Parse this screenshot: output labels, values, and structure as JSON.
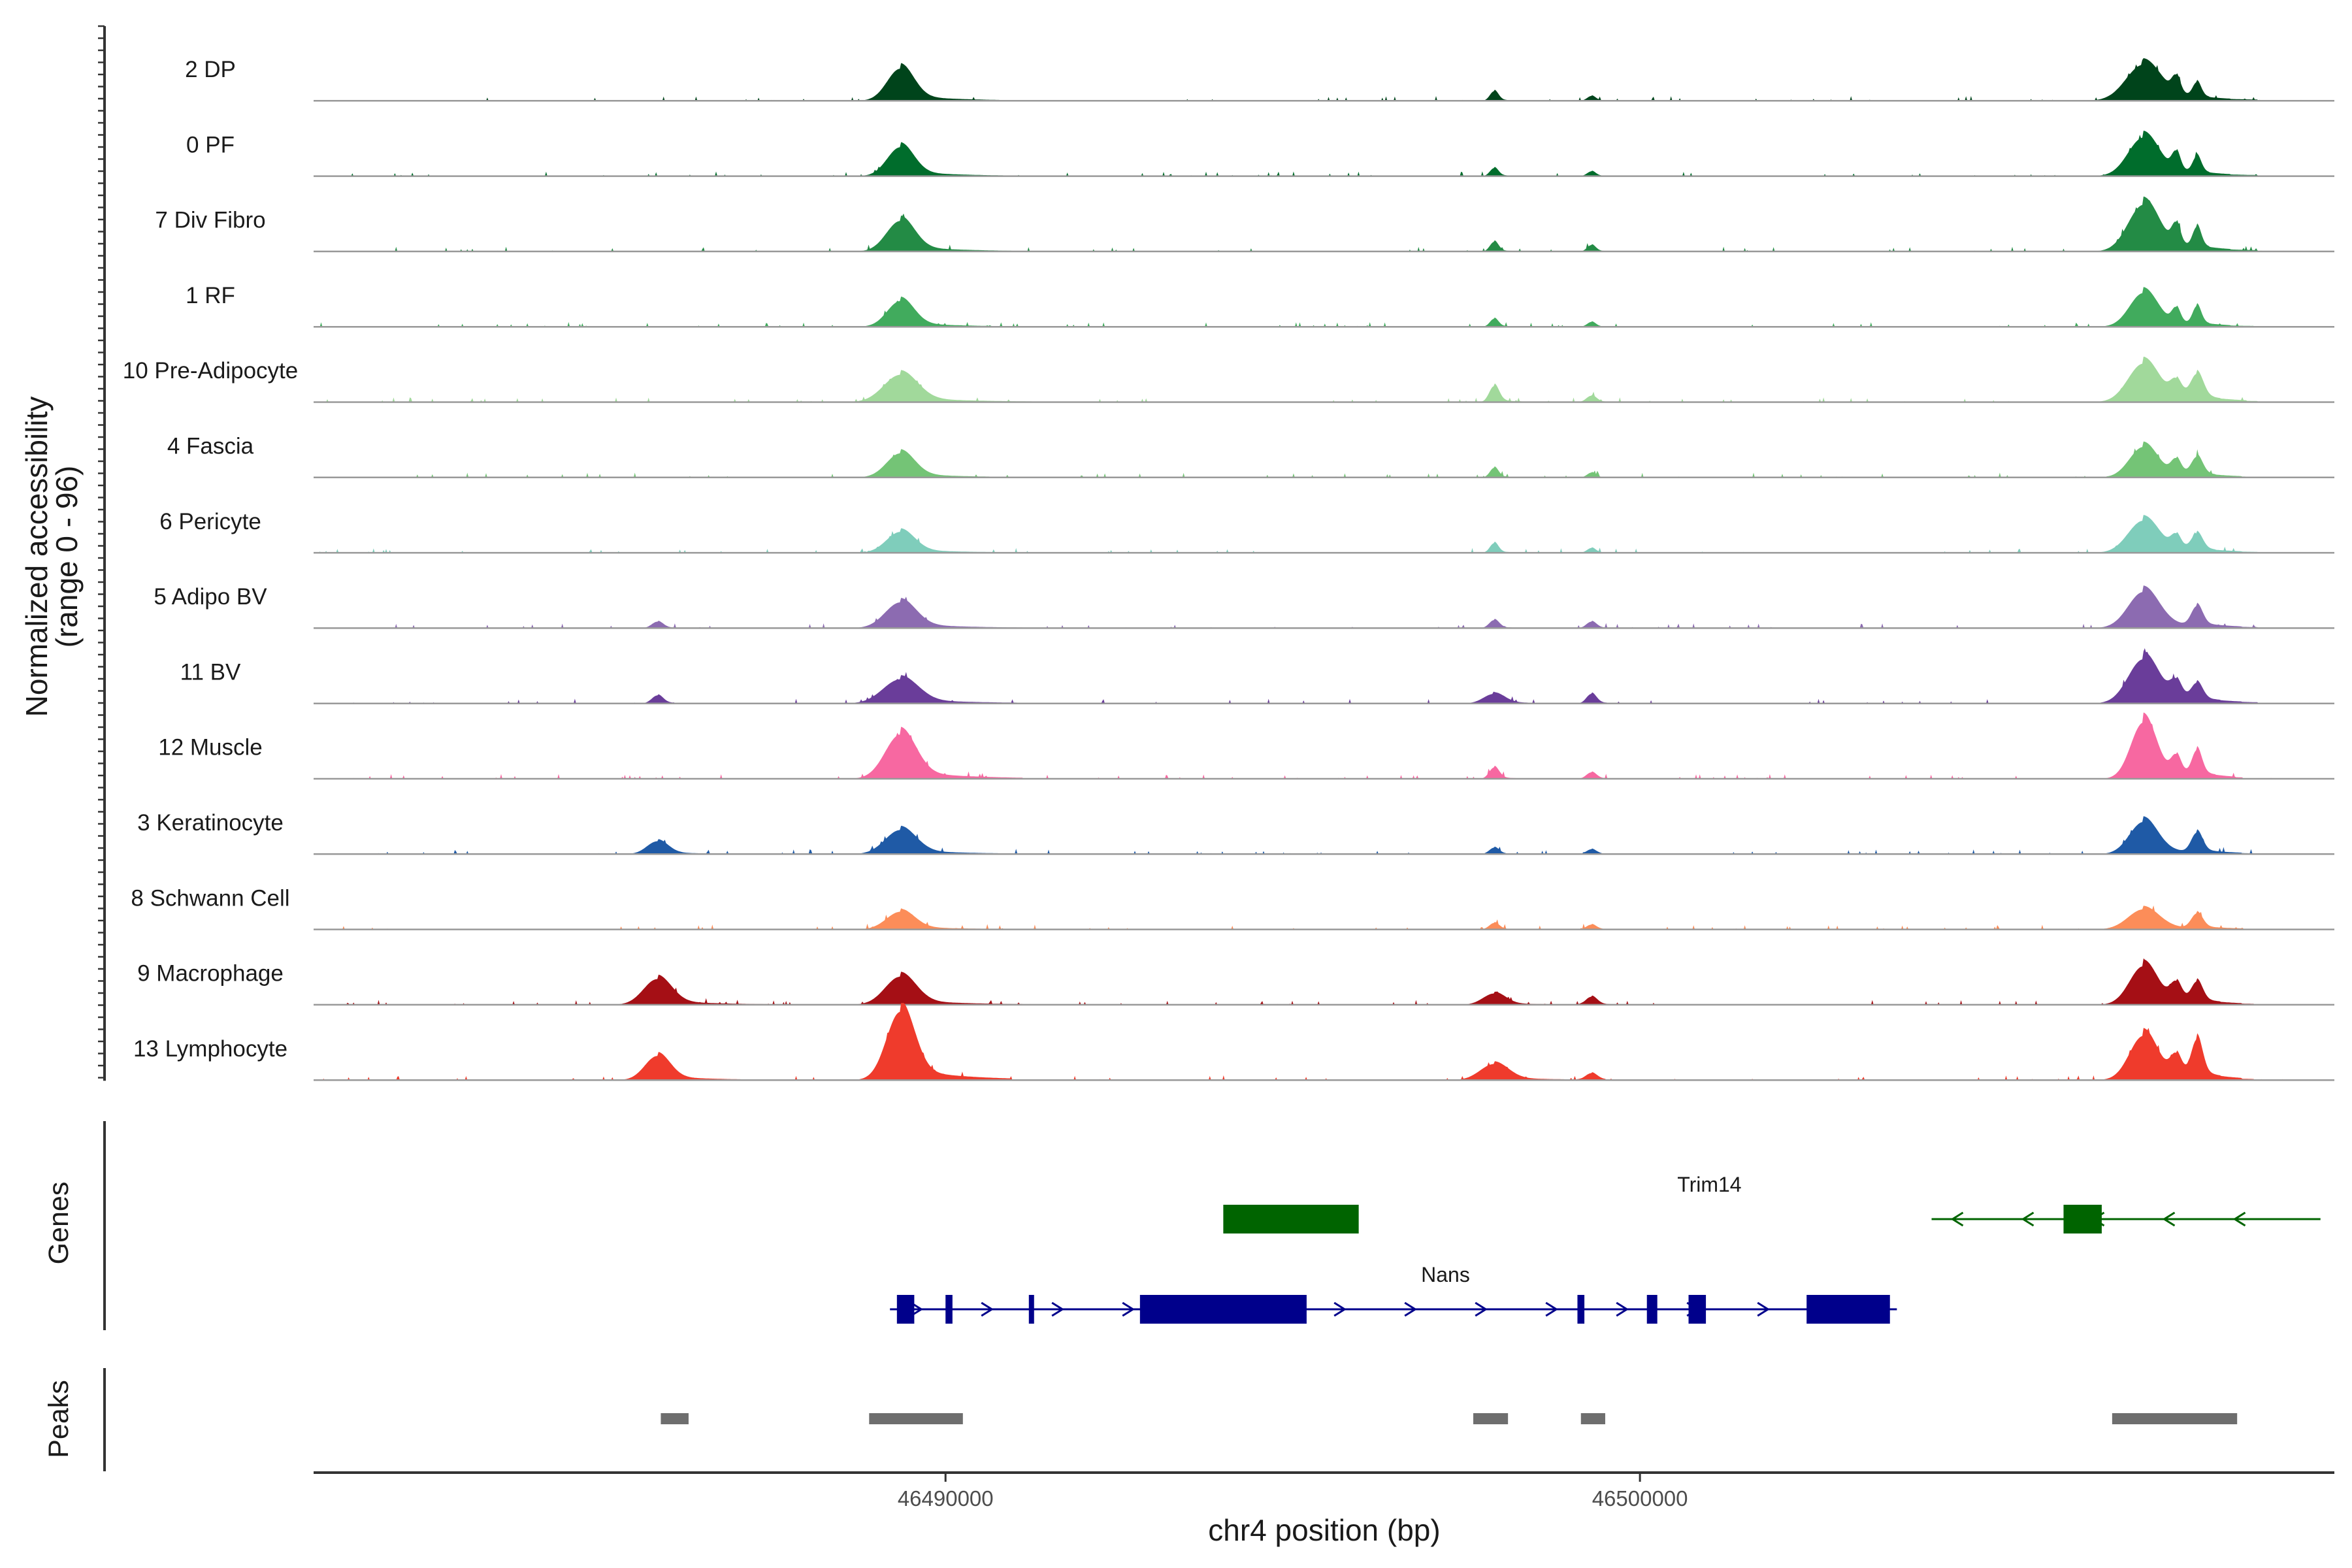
{
  "chart_data": {
    "type": "area",
    "title": "",
    "chromosome": "chr4",
    "xlabel": "chr4 position (bp)",
    "ylabel_line1": "Normalized accessibility",
    "ylabel_line2": "(range 0 - 96)",
    "xlim": [
      46480900,
      46510000
    ],
    "ylim": [
      0,
      96
    ],
    "x_ticks": [
      46490000,
      46500000
    ],
    "x_tick_labels": [
      "46490000",
      "46500000"
    ],
    "tracks": [
      {
        "name": "2 DP",
        "color": "#00441b",
        "peaks": [
          [
            46489350,
            40,
            190
          ],
          [
            46497900,
            12,
            60
          ],
          [
            46499300,
            6,
            60
          ],
          [
            46507250,
            45,
            250
          ],
          [
            46507720,
            20,
            60
          ],
          [
            46508020,
            18,
            60
          ]
        ]
      },
      {
        "name": "0 PF",
        "color": "#006d2c",
        "peaks": [
          [
            46489350,
            36,
            190
          ],
          [
            46497900,
            10,
            60
          ],
          [
            46499300,
            6,
            60
          ],
          [
            46507250,
            48,
            220
          ],
          [
            46507720,
            22,
            60
          ],
          [
            46508020,
            20,
            60
          ]
        ]
      },
      {
        "name": "7 Div Fibro",
        "color": "#238b45",
        "peaks": [
          [
            46489350,
            38,
            200
          ],
          [
            46497900,
            12,
            60
          ],
          [
            46499300,
            8,
            60
          ],
          [
            46507250,
            58,
            220
          ],
          [
            46507720,
            25,
            60
          ],
          [
            46508020,
            25,
            60
          ]
        ]
      },
      {
        "name": "1 RF",
        "color": "#41ab5d",
        "peaks": [
          [
            46489350,
            32,
            190
          ],
          [
            46497900,
            10,
            60
          ],
          [
            46499300,
            6,
            60
          ],
          [
            46507250,
            42,
            200
          ],
          [
            46507720,
            18,
            60
          ],
          [
            46508020,
            22,
            60
          ]
        ]
      },
      {
        "name": "10 Pre-Adipocyte",
        "color": "#a1d99b",
        "peaks": [
          [
            46489350,
            34,
            240
          ],
          [
            46497900,
            20,
            70
          ],
          [
            46499300,
            8,
            70
          ],
          [
            46507250,
            48,
            220
          ],
          [
            46507720,
            20,
            80
          ],
          [
            46508020,
            30,
            90
          ]
        ]
      },
      {
        "name": "4 Fascia",
        "color": "#74c476",
        "peaks": [
          [
            46489350,
            30,
            200
          ],
          [
            46497900,
            12,
            60
          ],
          [
            46499300,
            6,
            60
          ],
          [
            46507250,
            38,
            200
          ],
          [
            46507720,
            18,
            70
          ],
          [
            46508020,
            22,
            80
          ]
        ]
      },
      {
        "name": "6 Pericyte",
        "color": "#7fcdbb",
        "peaks": [
          [
            46489350,
            26,
            200
          ],
          [
            46497900,
            12,
            60
          ],
          [
            46499300,
            6,
            60
          ],
          [
            46507250,
            40,
            220
          ],
          [
            46507720,
            16,
            70
          ],
          [
            46508020,
            20,
            80
          ]
        ]
      },
      {
        "name": "5 Adipo BV",
        "color": "#8c6bb1",
        "peaks": [
          [
            46485850,
            8,
            80
          ],
          [
            46489350,
            32,
            220
          ],
          [
            46497900,
            10,
            70
          ],
          [
            46499300,
            8,
            70
          ],
          [
            46507250,
            45,
            220
          ],
          [
            46508020,
            24,
            80
          ]
        ]
      },
      {
        "name": "11 BV",
        "color": "#6a3d9a",
        "peaks": [
          [
            46485850,
            10,
            80
          ],
          [
            46489350,
            30,
            250
          ],
          [
            46497900,
            12,
            150
          ],
          [
            46499300,
            12,
            70
          ],
          [
            46507250,
            55,
            220
          ],
          [
            46507720,
            20,
            80
          ],
          [
            46508020,
            20,
            80
          ]
        ]
      },
      {
        "name": "12 Muscle",
        "color": "#f768a1",
        "peaks": [
          [
            46489350,
            55,
            220
          ],
          [
            46497900,
            14,
            70
          ],
          [
            46499300,
            8,
            70
          ],
          [
            46507250,
            70,
            180
          ],
          [
            46507720,
            22,
            70
          ],
          [
            46508020,
            30,
            70
          ]
        ]
      },
      {
        "name": "3 Keratinocyte",
        "color": "#1f5aa6",
        "peaks": [
          [
            46485850,
            16,
            150
          ],
          [
            46489350,
            30,
            220
          ],
          [
            46497900,
            8,
            70
          ],
          [
            46499300,
            6,
            70
          ],
          [
            46507250,
            40,
            200
          ],
          [
            46508020,
            24,
            80
          ]
        ]
      },
      {
        "name": "8 Schwann Cell",
        "color": "#fc8d59",
        "peaks": [
          [
            46489350,
            22,
            200
          ],
          [
            46497900,
            8,
            70
          ],
          [
            46499300,
            6,
            70
          ],
          [
            46507250,
            25,
            220
          ],
          [
            46508020,
            18,
            80
          ]
        ]
      },
      {
        "name": "9 Macrophage",
        "color": "#a50f15",
        "peaks": [
          [
            46485850,
            32,
            200
          ],
          [
            46489350,
            35,
            220
          ],
          [
            46497900,
            14,
            160
          ],
          [
            46499300,
            10,
            80
          ],
          [
            46507250,
            48,
            200
          ],
          [
            46507720,
            22,
            80
          ],
          [
            46508020,
            24,
            80
          ]
        ]
      },
      {
        "name": "13 Lymphocyte",
        "color": "#ef3b2c",
        "peaks": [
          [
            46485850,
            30,
            180
          ],
          [
            46489350,
            85,
            200
          ],
          [
            46497900,
            20,
            200
          ],
          [
            46499300,
            8,
            80
          ],
          [
            46507250,
            55,
            200
          ],
          [
            46507720,
            25,
            80
          ],
          [
            46508020,
            45,
            80
          ]
        ]
      }
    ],
    "genes_panel_title": "Genes",
    "genes": [
      {
        "name": "Trim14",
        "color": "#006400",
        "strand": "-",
        "start": 46504200,
        "end": 46509800,
        "label_at": 46501000,
        "exons": [
          [
            46494000,
            46495950
          ],
          [
            46506100,
            46506650
          ]
        ]
      },
      {
        "name": "Nans",
        "color": "#00008b",
        "strand": "+",
        "start": 46489200,
        "end": 46503700,
        "label_at": 46497200,
        "exons": [
          [
            46489300,
            46489550
          ],
          [
            46490000,
            46490100
          ],
          [
            46491200,
            46491240
          ],
          [
            46492800,
            46495200
          ],
          [
            46499100,
            46499200
          ],
          [
            46500100,
            46500250
          ],
          [
            46500700,
            46500950
          ],
          [
            46502400,
            46503600
          ]
        ]
      }
    ],
    "peaks_panel_title": "Peaks",
    "peaks": [
      [
        46485900,
        46486300
      ],
      [
        46488900,
        46490250
      ],
      [
        46497600,
        46498100
      ],
      [
        46499150,
        46499500
      ],
      [
        46506800,
        46508600
      ]
    ],
    "colors": {
      "baseline": "#999999",
      "peak_bar": "#6e6e6e",
      "axis": "#333333"
    }
  }
}
